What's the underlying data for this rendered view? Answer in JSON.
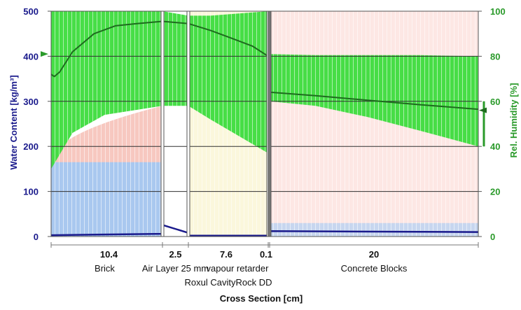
{
  "chart_data": {
    "type": "area",
    "xlabel": "Cross Section [cm]",
    "ylabel_left": "Water Content [kg/m³]",
    "ylabel_right": "Rel. Humidity [%]",
    "ylim_left": [
      0,
      500
    ],
    "ylim_right": [
      0,
      100
    ],
    "yticks_left": [
      "0",
      "100",
      "200",
      "300",
      "400",
      "500"
    ],
    "yticks_right": [
      "0",
      "20",
      "40",
      "60",
      "80",
      "100"
    ],
    "grid": true,
    "layers": [
      {
        "thickness": "10.4",
        "label": "Brick"
      },
      {
        "thickness": "2.5",
        "label": "Air Layer 25 mm"
      },
      {
        "thickness": "7.6",
        "label": "Roxul CavityRock DD"
      },
      {
        "thickness": "0.1",
        "label": "vapour retarder"
      },
      {
        "thickness": "20",
        "label": "Concrete Blocks"
      }
    ],
    "series": [
      {
        "name": "Relative Humidity",
        "axis": "right",
        "x": [
          0,
          0.3,
          0.8,
          2,
          4,
          6,
          8,
          10.4,
          12.9,
          15,
          17,
          19,
          20.5,
          20.6,
          20.7,
          25,
          30,
          35,
          40.6
        ],
        "values": [
          72,
          71,
          73,
          82,
          90,
          93.5,
          94.5,
          95.5,
          94.5,
          91.5,
          88,
          84.5,
          80,
          78,
          64,
          62.5,
          60.5,
          58.5,
          56.5
        ]
      },
      {
        "name": "Water Content",
        "axis": "left",
        "x": [
          0,
          10.4,
          10.5,
          12.9,
          13,
          20.5,
          20.6,
          40.6
        ],
        "values": [
          3,
          6,
          25,
          8,
          2,
          2,
          12,
          10
        ]
      }
    ],
    "rh_band": {
      "x": [
        0,
        2,
        5,
        10.4,
        12.9,
        15,
        20.5,
        20.6,
        25,
        30,
        35,
        40.6
      ],
      "max": [
        100,
        100,
        100,
        100,
        98,
        98,
        100,
        81,
        80.5,
        80.5,
        80.5,
        80
      ],
      "min": [
        30,
        46,
        54,
        58,
        58,
        52,
        37,
        60,
        58,
        53,
        47,
        40
      ]
    },
    "wc_band": {
      "x": [
        0,
        10.4,
        10.5,
        12.9,
        13,
        20.5,
        20.6,
        40.6
      ],
      "max": [
        165,
        290,
        290,
        290,
        280,
        180,
        300,
        200
      ],
      "min": [
        0,
        0,
        0,
        0,
        0,
        0,
        0,
        0
      ]
    },
    "colors": {
      "rh_band": "#3ddc3d",
      "rh_line": "#1e6b1e",
      "wc_line": "#1a1a8c",
      "wc_brick": "#f7c8c0",
      "wc_brick_ref": "#a9c8ef",
      "air": "#ffffff",
      "insulation": "#fbf7dc",
      "concrete": "#fde7e4",
      "concrete_ref": "#c7d6ef",
      "left_axis": "#1a1a8c",
      "right_axis": "#2a9a2a"
    }
  }
}
